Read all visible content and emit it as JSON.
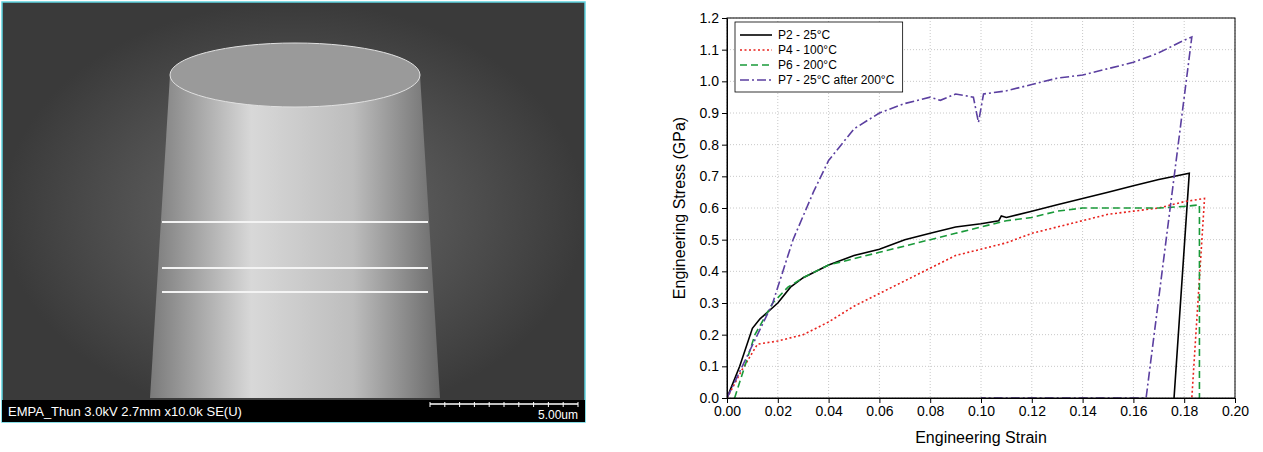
{
  "micrograph": {
    "info": "EMPA_Thun 3.0kV 2.7mm x10.0k SE(U)",
    "scale_bar": "5.00um"
  },
  "chart_data": {
    "type": "line",
    "x_label": "Engineering Strain",
    "y_label": "Engineering Stress (GPa)",
    "xlim": [
      0,
      0.2
    ],
    "ylim": [
      0,
      1.2
    ],
    "xticks": [
      {
        "value": 0,
        "label": "0.00"
      },
      0.02,
      0.04,
      0.06,
      0.08,
      {
        "value": 0.1,
        "label": "0.10"
      },
      0.12,
      0.14,
      0.16,
      0.18,
      {
        "value": 0.2,
        "label": "0.20"
      }
    ],
    "yticks": [
      {
        "value": 0,
        "label": "0.0"
      },
      0.1,
      0.2,
      0.3,
      0.4,
      0.5,
      0.6,
      0.7,
      0.8,
      0.9,
      {
        "value": 1,
        "label": "1.0"
      },
      1.1,
      1.2
    ],
    "grid": true,
    "legend": "top-left",
    "series": [
      {
        "name": "P2 - 25°C",
        "color": "#000000",
        "line_style": "solid",
        "x": [
          0,
          0.005,
          0.01,
          0.013,
          0.02,
          0.025,
          0.03,
          0.04,
          0.05,
          0.06,
          0.07,
          0.08,
          0.09,
          0.1,
          0.107,
          0.108,
          0.11,
          0.12,
          0.13,
          0.14,
          0.15,
          0.16,
          0.17,
          0.182,
          0.176
        ],
        "values": [
          0,
          0.1,
          0.22,
          0.25,
          0.3,
          0.35,
          0.38,
          0.42,
          0.45,
          0.47,
          0.5,
          0.52,
          0.54,
          0.55,
          0.56,
          0.575,
          0.57,
          0.59,
          0.61,
          0.63,
          0.65,
          0.67,
          0.69,
          0.71,
          0
        ]
      },
      {
        "name": "P4 - 100°C",
        "color": "#e8221d",
        "line_style": "dotted",
        "x": [
          0,
          0.006,
          0.012,
          0.02,
          0.03,
          0.04,
          0.05,
          0.06,
          0.07,
          0.08,
          0.09,
          0.1,
          0.11,
          0.12,
          0.13,
          0.14,
          0.15,
          0.16,
          0.17,
          0.18,
          0.188,
          0.183
        ],
        "values": [
          0,
          0.09,
          0.17,
          0.18,
          0.2,
          0.24,
          0.29,
          0.33,
          0.37,
          0.41,
          0.45,
          0.47,
          0.49,
          0.52,
          0.54,
          0.56,
          0.58,
          0.59,
          0.6,
          0.62,
          0.63,
          0
        ]
      },
      {
        "name": "P6 - 200°C",
        "color": "#1a9a3a",
        "line_style": "dashed",
        "x": [
          0.003,
          0.007,
          0.011,
          0.018,
          0.024,
          0.03,
          0.04,
          0.05,
          0.06,
          0.07,
          0.08,
          0.09,
          0.1,
          0.11,
          0.12,
          0.13,
          0.14,
          0.15,
          0.16,
          0.17,
          0.18,
          0.186,
          0.186
        ],
        "values": [
          0,
          0.1,
          0.2,
          0.3,
          0.35,
          0.38,
          0.42,
          0.44,
          0.46,
          0.48,
          0.5,
          0.52,
          0.54,
          0.56,
          0.57,
          0.59,
          0.6,
          0.6,
          0.6,
          0.6,
          0.605,
          0.61,
          0
        ]
      },
      {
        "name": "P7 - 25°C after 200°C",
        "color": "#5b3fa0",
        "line_style": "dashdot",
        "x": [
          0,
          0.009,
          0.018,
          0.026,
          0.034,
          0.04,
          0.05,
          0.06,
          0.07,
          0.08,
          0.084,
          0.09,
          0.097,
          0.099,
          0.101,
          0.11,
          0.12,
          0.13,
          0.14,
          0.15,
          0.16,
          0.17,
          0.18,
          0.183,
          0.165,
          0.1
        ],
        "values": [
          0,
          0.15,
          0.3,
          0.5,
          0.65,
          0.75,
          0.85,
          0.9,
          0.93,
          0.95,
          0.94,
          0.96,
          0.95,
          0.87,
          0.96,
          0.97,
          0.99,
          1.01,
          1.02,
          1.04,
          1.06,
          1.09,
          1.13,
          1.14,
          0,
          0
        ]
      }
    ]
  }
}
